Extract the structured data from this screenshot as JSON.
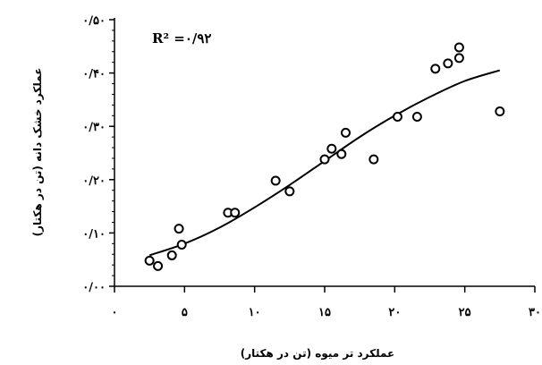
{
  "chart_data": {
    "type": "scatter",
    "xlabel": "عملکرد تر میوه (تن در هکتار)",
    "ylabel": "عملکرد خشک دانه (تن در هکتار)",
    "xlim": [
      0,
      30
    ],
    "ylim": [
      0,
      0.5
    ],
    "x_ticks": [
      0,
      5,
      10,
      15,
      20,
      25,
      30
    ],
    "y_ticks": [
      0,
      0.1,
      0.2,
      0.3,
      0.4,
      0.5
    ],
    "x_tick_labels": [
      "۰",
      "۵",
      "۱۰",
      "۱۵",
      "۲۰",
      "۲۵",
      "۳۰"
    ],
    "y_tick_labels": [
      "۰/۰۰",
      "۰/۱۰",
      "۰/۲۰",
      "۰/۳۰",
      "۰/۴۰",
      "۰/۵۰"
    ],
    "annotation": "R² =۰/۹۲",
    "grid": false,
    "points": [
      {
        "x": 2.5,
        "y": 0.048
      },
      {
        "x": 3.1,
        "y": 0.038
      },
      {
        "x": 4.1,
        "y": 0.058
      },
      {
        "x": 4.6,
        "y": 0.108
      },
      {
        "x": 4.8,
        "y": 0.078
      },
      {
        "x": 8.1,
        "y": 0.138
      },
      {
        "x": 8.6,
        "y": 0.138
      },
      {
        "x": 11.5,
        "y": 0.198
      },
      {
        "x": 12.5,
        "y": 0.178
      },
      {
        "x": 15.0,
        "y": 0.238
      },
      {
        "x": 15.5,
        "y": 0.258
      },
      {
        "x": 16.2,
        "y": 0.248
      },
      {
        "x": 16.5,
        "y": 0.288
      },
      {
        "x": 18.5,
        "y": 0.238
      },
      {
        "x": 20.2,
        "y": 0.318
      },
      {
        "x": 21.6,
        "y": 0.318
      },
      {
        "x": 22.9,
        "y": 0.408
      },
      {
        "x": 23.8,
        "y": 0.418
      },
      {
        "x": 24.6,
        "y": 0.428
      },
      {
        "x": 24.6,
        "y": 0.448
      },
      {
        "x": 27.5,
        "y": 0.328
      }
    ],
    "trendline": {
      "type": "polynomial",
      "x": [
        2.5,
        5,
        7.5,
        10,
        12.5,
        15,
        17.5,
        20,
        22.5,
        25,
        27.5
      ],
      "y": [
        0.058,
        0.08,
        0.11,
        0.148,
        0.19,
        0.235,
        0.28,
        0.32,
        0.355,
        0.385,
        0.405
      ]
    },
    "marker_color": "#000000",
    "line_color": "#000000"
  }
}
